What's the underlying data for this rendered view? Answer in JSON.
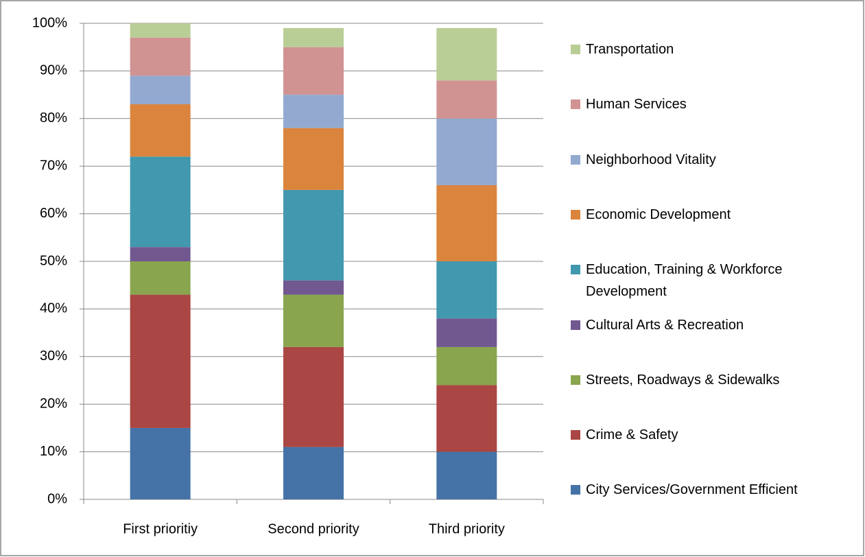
{
  "chart_data": {
    "type": "stacked_bar",
    "categories": [
      "First prioritiy",
      "Second priority",
      "Third priority"
    ],
    "series": [
      {
        "name": "City Services/Government Efficient",
        "color": "#4572a7",
        "values": [
          15,
          11,
          10
        ]
      },
      {
        "name": "Crime & Safety",
        "color": "#aa4643",
        "values": [
          28,
          21,
          14
        ]
      },
      {
        "name": "Streets, Roadways & Sidewalks",
        "color": "#89a54e",
        "values": [
          7,
          11,
          8
        ]
      },
      {
        "name": "Cultural Arts & Recreation",
        "color": "#71588f",
        "values": [
          3,
          3,
          6
        ]
      },
      {
        "name": "Education, Training & Workforce Development",
        "color": "#4198af",
        "values": [
          19,
          19,
          12
        ]
      },
      {
        "name": "Economic Development",
        "color": "#db843d",
        "values": [
          11,
          13,
          16
        ]
      },
      {
        "name": "Neighborhood Vitality",
        "color": "#93a9cf",
        "values": [
          6,
          7,
          14
        ]
      },
      {
        "name": "Human Services",
        "color": "#d19392",
        "values": [
          8,
          10,
          8
        ]
      },
      {
        "name": "Transportation",
        "color": "#b9cd96",
        "values": [
          3,
          4,
          11
        ]
      }
    ],
    "ylim": [
      0,
      100
    ],
    "yticks": [
      {
        "value": 0,
        "label": "0%"
      },
      {
        "value": 10,
        "label": "10%"
      },
      {
        "value": 20,
        "label": "20%"
      },
      {
        "value": 30,
        "label": "30%"
      },
      {
        "value": 40,
        "label": "40%"
      },
      {
        "value": 50,
        "label": "50%"
      },
      {
        "value": 60,
        "label": "60%"
      },
      {
        "value": 70,
        "label": "70%"
      },
      {
        "value": 80,
        "label": "80%"
      },
      {
        "value": 90,
        "label": "90%"
      },
      {
        "value": 100,
        "label": "100%"
      }
    ],
    "grid": true,
    "legend": "right"
  }
}
